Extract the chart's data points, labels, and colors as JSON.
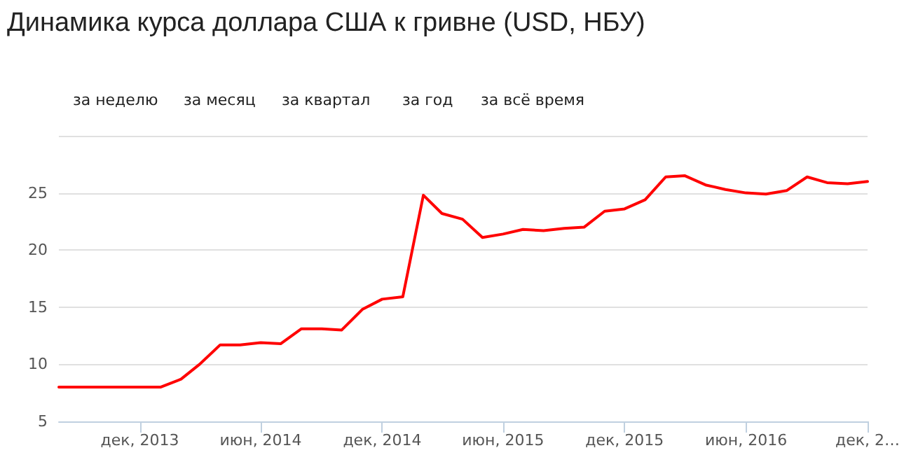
{
  "chart_data": {
    "type": "line",
    "title": "Динамика курса доллара США к гривне (USD, НБУ)",
    "annotations": [
      "за неделю",
      "за месяц",
      "за квартал",
      "за год",
      "за всё время"
    ],
    "x": [
      "2013-08",
      "2013-09",
      "2013-10",
      "2013-11",
      "2013-12",
      "2014-01",
      "2014-02",
      "2014-03",
      "2014-04",
      "2014-05",
      "2014-06",
      "2014-07",
      "2014-08",
      "2014-09",
      "2014-10",
      "2014-11",
      "2014-12",
      "2015-01",
      "2015-02",
      "2015-03",
      "2015-04",
      "2015-05",
      "2015-06",
      "2015-07",
      "2015-08",
      "2015-09",
      "2015-10",
      "2015-11",
      "2015-12",
      "2016-01",
      "2016-02",
      "2016-03",
      "2016-04",
      "2016-05",
      "2016-06",
      "2016-07",
      "2016-08",
      "2016-09",
      "2016-10",
      "2016-11",
      "2016-12"
    ],
    "series": [
      {
        "color": "#ff0000",
        "values": [
          8.0,
          8.0,
          8.0,
          8.0,
          8.0,
          8.0,
          8.7,
          10.0,
          11.7,
          11.7,
          11.9,
          11.8,
          13.1,
          13.1,
          13.0,
          14.8,
          15.7,
          15.9,
          24.8,
          23.2,
          22.7,
          21.1,
          21.4,
          21.8,
          21.7,
          21.9,
          22.0,
          23.4,
          23.6,
          24.4,
          26.4,
          26.5,
          25.7,
          25.3,
          25.0,
          24.9,
          25.2,
          26.4,
          25.9,
          25.8,
          26.0
        ]
      }
    ],
    "xlim": [
      "2013-08",
      "2016-12"
    ],
    "xticks": [
      {
        "value": "2013-12",
        "label": "дек, 2013"
      },
      {
        "value": "2014-06",
        "label": "июн, 2014"
      },
      {
        "value": "2014-12",
        "label": "дек, 2014"
      },
      {
        "value": "2015-06",
        "label": "июн, 2015"
      },
      {
        "value": "2015-12",
        "label": "дек, 2015"
      },
      {
        "value": "2016-06",
        "label": "июн, 2016"
      },
      {
        "value": "2016-12",
        "label": "дек, 2…"
      }
    ],
    "ylim": [
      5,
      30
    ],
    "yticks": [
      5,
      10,
      15,
      20,
      25,
      {
        "value": 30,
        "label": null
      }
    ],
    "grid": "y",
    "marker": "none",
    "line_style": "solid"
  }
}
